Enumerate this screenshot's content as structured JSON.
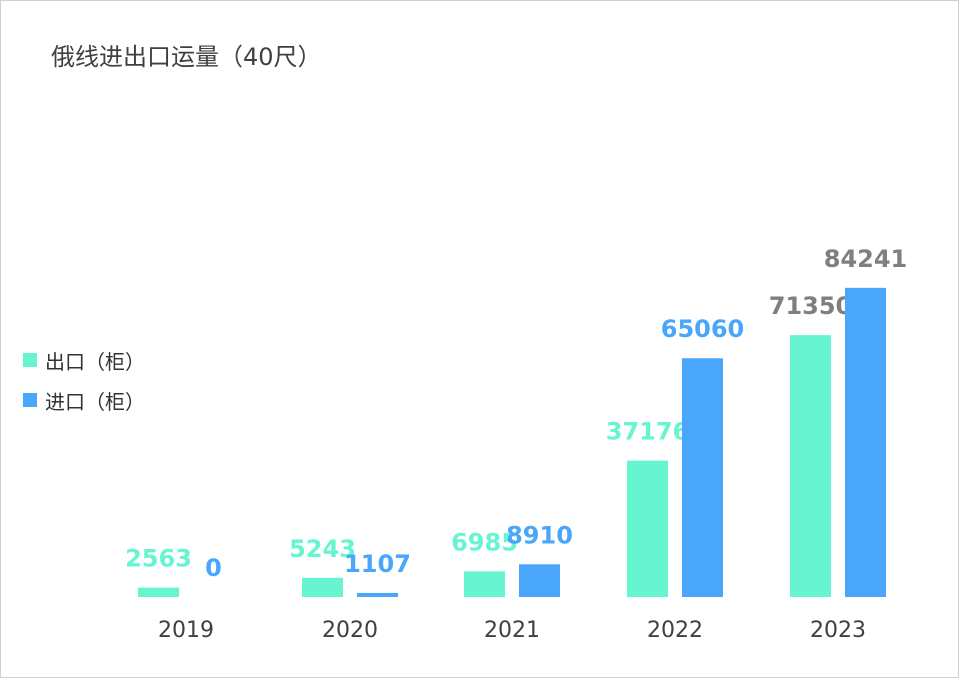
{
  "title": "俄线进出口运量（40尺）",
  "colors": {
    "export": "#66f5d0",
    "import": "#4aa6fb",
    "label_gray": "#7f7f7f"
  },
  "legend": [
    {
      "label": "出口（柜）",
      "color": "#66f5d0"
    },
    {
      "label": "进口（柜）",
      "color": "#4aa6fb"
    }
  ],
  "chart_data": {
    "type": "bar",
    "title": "俄线进出口运量（40尺）",
    "categories": [
      "2019",
      "2020",
      "2021",
      "2022",
      "2023"
    ],
    "series": [
      {
        "name": "出口（柜）",
        "values": [
          2563,
          5243,
          6985,
          37176,
          71350
        ],
        "color": "#66f5d0"
      },
      {
        "name": "进口（柜）",
        "values": [
          0,
          1107,
          8910,
          65060,
          84241
        ],
        "color": "#4aa6fb"
      }
    ],
    "data_label_colors": {
      "出口（柜）": [
        "#66f5d0",
        "#66f5d0",
        "#66f5d0",
        "#66f5d0",
        "#7f7f7f"
      ],
      "进口（柜）": [
        "#4aa6fb",
        "#4aa6fb",
        "#4aa6fb",
        "#4aa6fb",
        "#7f7f7f"
      ]
    },
    "xlabel": "",
    "ylabel": "",
    "ylim": [
      0,
      100000
    ],
    "grid": false,
    "legend_position": "left"
  }
}
